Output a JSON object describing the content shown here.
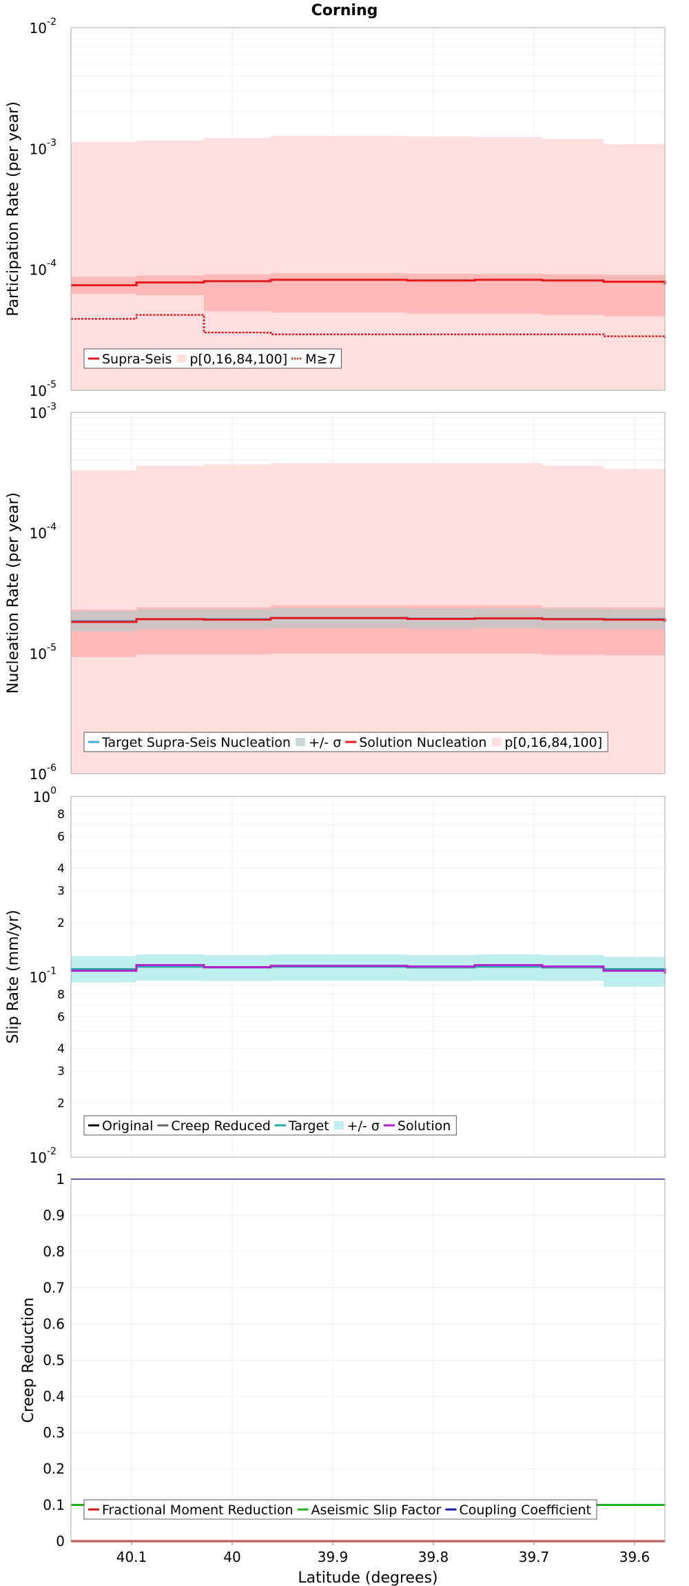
{
  "title": "Corning",
  "colors": {
    "supra_seis": "#e8191e",
    "band_light": "#ffdede",
    "band_mid": "#ffb9b9",
    "band_grey": "#c7c7c7",
    "target_nucleation": "#3aaed8",
    "original": "#000000",
    "creep_reduced": "#666666",
    "target": "#1db0a8",
    "sigma_band": "#bfeeee",
    "solution": "#b41ecf",
    "fractional": "#d11a1a",
    "aseismic": "#1fb01f",
    "coupling": "#1a1a9c"
  },
  "chart_data": [
    {
      "type": "line",
      "step": true,
      "ylabel": "Participation Rate (per year)",
      "yscale": "log",
      "ylim": [
        1e-05,
        0.01
      ],
      "xlim": [
        40.16,
        39.57
      ],
      "x_edges": [
        40.16,
        40.105,
        39.985,
        39.875,
        39.772,
        39.66,
        39.55,
        39.485,
        39.4
      ],
      "y_tick_labels": [
        {
          "base": "10",
          "exp": "-2",
          "value": 0.01
        },
        {
          "base": "10",
          "exp": "-3",
          "value": 0.001
        },
        {
          "base": "10",
          "exp": "-4",
          "value": 0.0001
        },
        {
          "base": "10",
          "exp": "-5",
          "value": 1e-05
        }
      ],
      "series": [
        {
          "name": "Supra-Seis",
          "style": "solid",
          "values": [
            7.4e-05,
            7.8e-05,
            8e-05,
            8.2e-05,
            8.1e-05,
            8.2e-05,
            8.1e-05,
            7.9e-05,
            7.5e-05
          ]
        },
        {
          "name": "M≥7",
          "style": "dotted",
          "values": [
            3.9e-05,
            4.2e-05,
            3e-05,
            2.9e-05,
            2.9e-05,
            2.9e-05,
            2.9e-05,
            2.8e-05,
            2.7e-05
          ]
        }
      ],
      "bands": [
        {
          "low": [
            1e-05,
            1e-05,
            1e-05,
            1e-05,
            1e-05,
            1e-05,
            1e-05,
            1e-05,
            1e-05
          ],
          "high": [
            0.00113,
            0.00116,
            0.00122,
            0.00127,
            0.00126,
            0.00124,
            0.0012,
            0.00109,
            0.00106
          ]
        },
        {
          "low": [
            6.3e-05,
            6.1e-05,
            4.5e-05,
            4.4e-05,
            4.3e-05,
            4.3e-05,
            4.2e-05,
            4.1e-05,
            4e-05
          ],
          "high": [
            8.7e-05,
            8.9e-05,
            9.1e-05,
            9.3e-05,
            9.2e-05,
            9.2e-05,
            9.1e-05,
            9e-05,
            8.8e-05
          ]
        }
      ],
      "legend": {
        "placement": "bottom-left",
        "entries": [
          {
            "label": "Supra-Seis",
            "kind": "line",
            "color": "#e8191e"
          },
          {
            "label": "p[0,16,84,100]",
            "kind": "swatch",
            "color": "#ffdede"
          },
          {
            "label": "M≥7",
            "kind": "dotted",
            "color": "#e8191e"
          }
        ]
      }
    },
    {
      "type": "line",
      "step": true,
      "ylabel": "Nucleation Rate (per year)",
      "yscale": "log",
      "ylim": [
        1e-06,
        0.001
      ],
      "xlim": [
        40.16,
        39.57
      ],
      "x_edges": [
        40.16,
        40.105,
        39.985,
        39.875,
        39.772,
        39.66,
        39.55,
        39.485,
        39.4
      ],
      "y_tick_labels": [
        {
          "base": "10",
          "exp": "-3",
          "value": 0.001
        },
        {
          "base": "10",
          "exp": "-4",
          "value": 0.0001
        },
        {
          "base": "10",
          "exp": "-5",
          "value": 1e-05
        },
        {
          "base": "10",
          "exp": "-6",
          "value": 1e-06
        }
      ],
      "series": [
        {
          "name": "Target Supra-Seis Nucleation",
          "style": "solid",
          "values": [
            1.85e-05,
            1.92e-05,
            1.92e-05,
            1.96e-05,
            1.94e-05,
            1.95e-05,
            1.93e-05,
            1.92e-05,
            1.86e-05
          ]
        },
        {
          "name": "Solution Nucleation",
          "style": "solid",
          "values": [
            1.82e-05,
            1.92e-05,
            1.9e-05,
            1.96e-05,
            1.93e-05,
            1.95e-05,
            1.92e-05,
            1.9e-05,
            1.82e-05
          ]
        }
      ],
      "bands": [
        {
          "low": [
            1e-06,
            1e-06,
            1e-06,
            1e-06,
            1e-06,
            1e-06,
            1e-06,
            1e-06,
            1e-06
          ],
          "high": [
            0.00033,
            0.00036,
            0.00037,
            0.00038,
            0.00038,
            0.00038,
            0.00036,
            0.00034,
            0.00031
          ]
        },
        {
          "low": [
            9.3e-06,
            9.8e-06,
            9.8e-06,
            9.9e-06,
            9.9e-06,
            9.9e-06,
            9.7e-06,
            9.6e-06,
            9.2e-06
          ],
          "high": [
            2.3e-05,
            2.4e-05,
            2.4e-05,
            2.5e-05,
            2.5e-05,
            2.5e-05,
            2.4e-05,
            2.4e-05,
            2.3e-05
          ]
        },
        {
          "low": [
            1.52e-05,
            1.58e-05,
            1.58e-05,
            1.62e-05,
            1.6e-05,
            1.61e-05,
            1.59e-05,
            1.58e-05,
            1.53e-05
          ],
          "high": [
            2.25e-05,
            2.32e-05,
            2.32e-05,
            2.38e-05,
            2.36e-05,
            2.37e-05,
            2.34e-05,
            2.32e-05,
            2.25e-05
          ]
        }
      ],
      "legend": {
        "placement": "bottom-left",
        "entries": [
          {
            "label": "Target Supra-Seis Nucleation",
            "kind": "line",
            "color": "#3aaed8"
          },
          {
            "label": "+/- σ",
            "kind": "swatch",
            "color": "#c7d9d9"
          },
          {
            "label": "Solution Nucleation",
            "kind": "line",
            "color": "#e8191e"
          },
          {
            "label": "p[0,16,84,100]",
            "kind": "swatch",
            "color": "#ffdede"
          }
        ]
      }
    },
    {
      "type": "line",
      "step": true,
      "ylabel": "Slip Rate (mm/yr)",
      "yscale": "log",
      "ylim": [
        0.01,
        1
      ],
      "xlim": [
        40.16,
        39.57
      ],
      "x_edges": [
        40.16,
        40.105,
        39.985,
        39.875,
        39.772,
        39.66,
        39.55,
        39.485,
        39.4
      ],
      "y_tick_labels": [
        {
          "base": "10",
          "exp": "0",
          "value": 1
        },
        {
          "base": "10",
          "exp": "-1",
          "value": 0.1
        },
        {
          "base": "10",
          "exp": "-2",
          "value": 0.01
        }
      ],
      "y_minor_labels": [
        {
          "label": "8",
          "value": 0.8
        },
        {
          "label": "6",
          "value": 0.6
        },
        {
          "label": "4",
          "value": 0.4
        },
        {
          "label": "3",
          "value": 0.3
        },
        {
          "label": "2",
          "value": 0.2
        },
        {
          "label": "8",
          "value": 0.08
        },
        {
          "label": "6",
          "value": 0.06
        },
        {
          "label": "4",
          "value": 0.04
        },
        {
          "label": "3",
          "value": 0.03
        },
        {
          "label": "2",
          "value": 0.02
        }
      ],
      "series": [
        {
          "name": "Original",
          "style": "solid",
          "values": [
            0.11,
            0.114,
            0.113,
            0.114,
            0.113,
            0.114,
            0.113,
            0.11,
            0.111
          ]
        },
        {
          "name": "Creep Reduced",
          "style": "solid",
          "values": [
            0.11,
            0.114,
            0.113,
            0.114,
            0.113,
            0.114,
            0.113,
            0.11,
            0.111
          ]
        },
        {
          "name": "Target",
          "style": "solid",
          "values": [
            0.11,
            0.114,
            0.113,
            0.114,
            0.113,
            0.114,
            0.113,
            0.11,
            0.111
          ]
        },
        {
          "name": "Solution",
          "style": "solid",
          "values": [
            0.108,
            0.116,
            0.113,
            0.115,
            0.114,
            0.116,
            0.114,
            0.108,
            0.104
          ]
        }
      ],
      "bands": [
        {
          "low": [
            0.093,
            0.095,
            0.095,
            0.095,
            0.095,
            0.095,
            0.095,
            0.088,
            0.093
          ],
          "high": [
            0.13,
            0.133,
            0.132,
            0.133,
            0.132,
            0.133,
            0.132,
            0.129,
            0.13
          ]
        }
      ],
      "legend": {
        "placement": "bottom-left",
        "entries": [
          {
            "label": "Original",
            "kind": "line",
            "color": "#000000"
          },
          {
            "label": "Creep Reduced",
            "kind": "line",
            "color": "#666666"
          },
          {
            "label": "Target",
            "kind": "line",
            "color": "#1db0a8"
          },
          {
            "label": "+/- σ",
            "kind": "swatch",
            "color": "#bfeeee"
          },
          {
            "label": "Solution",
            "kind": "line",
            "color": "#b41ecf"
          }
        ]
      }
    },
    {
      "type": "line",
      "step": true,
      "ylabel": "Creep Reduction",
      "xlabel": "Latitude (degrees)",
      "yscale": "linear",
      "ylim": [
        0,
        1
      ],
      "xlim": [
        40.16,
        39.57
      ],
      "x_edges": [
        40.16,
        40.105,
        39.985,
        39.875,
        39.772,
        39.66,
        39.55,
        39.485,
        39.4
      ],
      "y_tick_labels": [
        "0",
        "0.1",
        "0.2",
        "0.3",
        "0.4",
        "0.5",
        "0.6",
        "0.7",
        "0.8",
        "0.9",
        "1"
      ],
      "x_tick_labels": [
        "40.1",
        "40",
        "39.9",
        "39.8",
        "39.7",
        "39.6"
      ],
      "series": [
        {
          "name": "Fractional Moment Reduction",
          "style": "solid",
          "values": [
            0,
            0,
            0,
            0,
            0,
            0,
            0,
            0,
            0
          ]
        },
        {
          "name": "Aseismic Slip Factor",
          "style": "solid",
          "values": [
            0.1,
            0.1,
            0.1,
            0.1,
            0.1,
            0.1,
            0.1,
            0.1,
            0.1
          ]
        },
        {
          "name": "Coupling Coefficient",
          "style": "solid",
          "values": [
            1,
            1,
            1,
            1,
            1,
            1,
            1,
            1,
            1
          ]
        }
      ],
      "legend": {
        "placement": "bottom-left",
        "entries": [
          {
            "label": "Fractional Moment Reduction",
            "kind": "line",
            "color": "#d11a1a"
          },
          {
            "label": "Aseismic Slip Factor",
            "kind": "line",
            "color": "#1fb01f"
          },
          {
            "label": "Coupling Coefficient",
            "kind": "line",
            "color": "#1a1a9c"
          }
        ]
      }
    }
  ]
}
